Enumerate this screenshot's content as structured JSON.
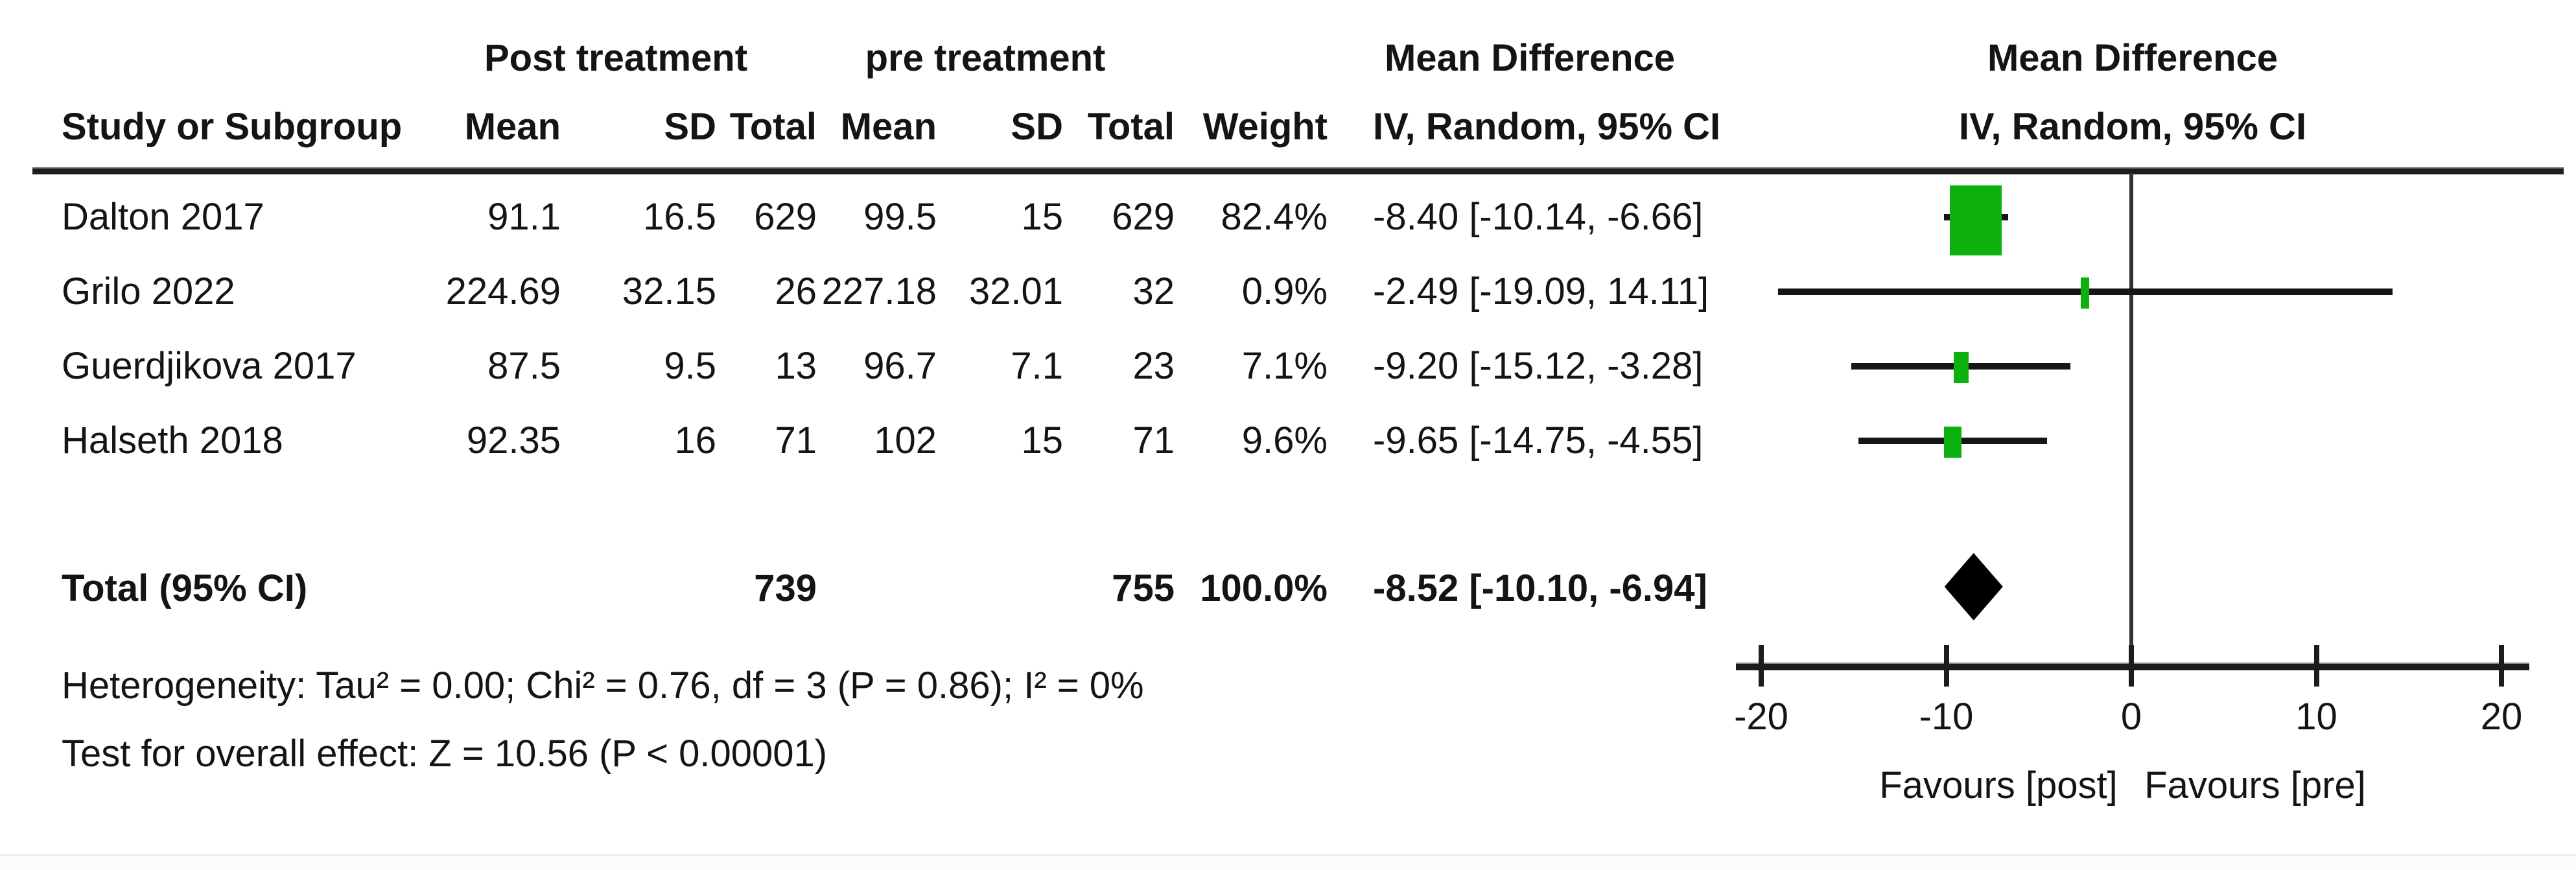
{
  "table": {
    "group1_header": "Post treatment",
    "group2_header": "pre treatment",
    "md_header": "Mean Difference",
    "md_subheader": "IV, Random, 95% CI",
    "plot_header": "Mean Difference",
    "plot_subheader": "IV, Random, 95% CI",
    "col_study": "Study or Subgroup",
    "col_mean1": "Mean",
    "col_sd1": "SD",
    "col_total1": "Total",
    "col_mean2": "Mean",
    "col_sd2": "SD",
    "col_total2": "Total",
    "col_weight": "Weight",
    "rows": [
      {
        "study": "Dalton 2017",
        "post_mean": "91.1",
        "post_sd": "16.5",
        "post_total": "629",
        "pre_mean": "99.5",
        "pre_sd": "15",
        "pre_total": "629",
        "weight": "82.4%",
        "md_ci": "-8.40 [-10.14, -6.66]"
      },
      {
        "study": "Grilo 2022",
        "post_mean": "224.69",
        "post_sd": "32.15",
        "post_total": "26",
        "pre_mean": "227.18",
        "pre_sd": "32.01",
        "pre_total": "32",
        "weight": "0.9%",
        "md_ci": "-2.49 [-19.09, 14.11]"
      },
      {
        "study": "Guerdjikova 2017",
        "post_mean": "87.5",
        "post_sd": "9.5",
        "post_total": "13",
        "pre_mean": "96.7",
        "pre_sd": "7.1",
        "pre_total": "23",
        "weight": "7.1%",
        "md_ci": "-9.20 [-15.12, -3.28]"
      },
      {
        "study": "Halseth 2018",
        "post_mean": "92.35",
        "post_sd": "16",
        "post_total": "71",
        "pre_mean": "102",
        "pre_sd": "15",
        "pre_total": "71",
        "weight": "9.6%",
        "md_ci": "-9.65 [-14.75, -4.55]"
      }
    ],
    "total": {
      "label": "Total (95% CI)",
      "post_total": "739",
      "pre_total": "755",
      "weight": "100.0%",
      "md_ci": "-8.52 [-10.10, -6.94]"
    },
    "heterogeneity": "Heterogeneity: Tau² = 0.00; Chi² = 0.76, df = 3 (P = 0.86); I² = 0%",
    "overall_effect": "Test for overall effect: Z = 10.56 (P < 0.00001)"
  },
  "chart_data": {
    "type": "forest",
    "effect_measure": "Mean Difference, IV, Random, 95% CI",
    "xlim": [
      -20,
      20
    ],
    "ticks": [
      -20,
      -10,
      0,
      10,
      20
    ],
    "tick_labels": [
      "-20",
      "-10",
      "0",
      "10",
      "20"
    ],
    "favours_left": "Favours [post]",
    "favours_right": "Favours [pre]",
    "marker_color": "#0db10d",
    "line_color": "#161616",
    "studies": [
      {
        "name": "Dalton 2017",
        "md": -8.4,
        "ci_low": -10.14,
        "ci_high": -6.66,
        "weight": 82.4
      },
      {
        "name": "Grilo 2022",
        "md": -2.49,
        "ci_low": -19.09,
        "ci_high": 14.11,
        "weight": 0.9
      },
      {
        "name": "Guerdjikova 2017",
        "md": -9.2,
        "ci_low": -15.12,
        "ci_high": -3.28,
        "weight": 7.1
      },
      {
        "name": "Halseth 2018",
        "md": -9.65,
        "ci_low": -14.75,
        "ci_high": -4.55,
        "weight": 9.6
      }
    ],
    "total": {
      "md": -8.52,
      "ci_low": -10.1,
      "ci_high": -6.94
    }
  }
}
